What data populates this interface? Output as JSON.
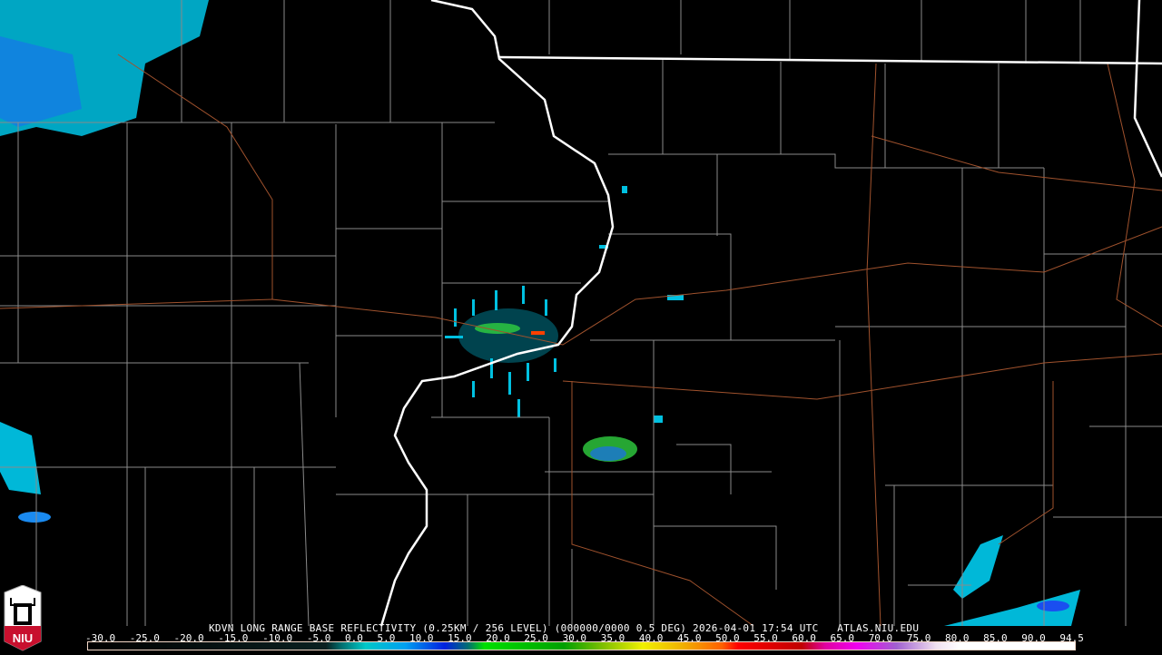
{
  "product": {
    "title": "KDVN LONG RANGE BASE REFLECTIVITY (0.25KM / 256 LEVEL) (000000/0000 0.5 DEG) 2026-04-01 17:54 UTC   ATLAS.NIU.EDU",
    "station": "KDVN",
    "datetime": "2026-04-01 17:54 UTC",
    "source": "ATLAS.NIU.EDU"
  },
  "logo": {
    "text": "NIU",
    "color": "#c8102e"
  },
  "colorbar": {
    "labels": [
      "-30.0",
      "-25.0",
      "-20.0",
      "-15.0",
      "-10.0",
      "-5.0",
      "0.0",
      "5.0",
      "10.0",
      "15.0",
      "20.0",
      "25.0",
      "30.0",
      "35.0",
      "40.0",
      "45.0",
      "50.0",
      "55.0",
      "60.0",
      "65.0",
      "70.0",
      "75.0",
      "80.0",
      "85.0",
      "90.0",
      "94.5"
    ],
    "range": [
      -30,
      94.5
    ],
    "stops": [
      {
        "value": -30,
        "color": "#000000"
      },
      {
        "value": 0,
        "color": "#0a2020"
      },
      {
        "value": 2,
        "color": "#007070"
      },
      {
        "value": 5,
        "color": "#00c8c8"
      },
      {
        "value": 10,
        "color": "#00a0f0"
      },
      {
        "value": 15,
        "color": "#0020e0"
      },
      {
        "value": 18,
        "color": "#007070"
      },
      {
        "value": 20,
        "color": "#00e000"
      },
      {
        "value": 30,
        "color": "#00a000"
      },
      {
        "value": 35,
        "color": "#80c000"
      },
      {
        "value": 40,
        "color": "#f0f000"
      },
      {
        "value": 45,
        "color": "#f0b000"
      },
      {
        "value": 50,
        "color": "#ff6000"
      },
      {
        "value": 52,
        "color": "#ff0000"
      },
      {
        "value": 60,
        "color": "#c00000"
      },
      {
        "value": 63,
        "color": "#e000a0"
      },
      {
        "value": 67,
        "color": "#f000f0"
      },
      {
        "value": 72,
        "color": "#a060d0"
      },
      {
        "value": 77,
        "color": "#f0e0f0"
      },
      {
        "value": 80,
        "color": "#ffffff"
      },
      {
        "value": 94.5,
        "color": "#ffffff"
      }
    ]
  }
}
